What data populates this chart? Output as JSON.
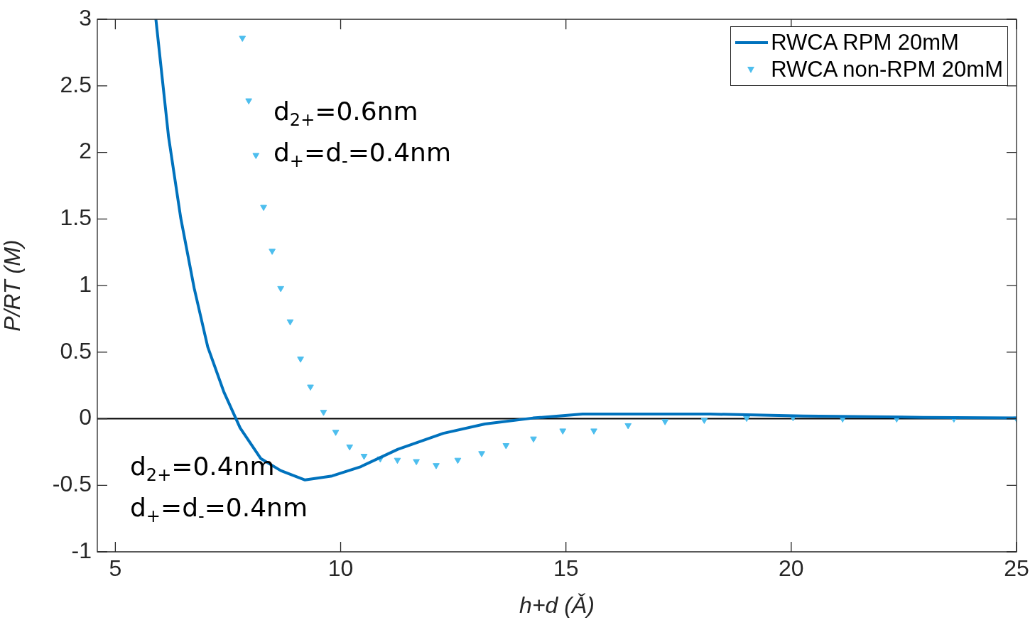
{
  "chart_data": {
    "type": "line",
    "xlabel": "h+d (Ǎ)",
    "ylabel": "P/RT (M)",
    "xlim": [
      4.6,
      25
    ],
    "xticks": [
      5,
      10,
      15,
      20,
      25
    ],
    "ylim": [
      -1,
      3
    ],
    "yticks": [
      -1,
      -0.5,
      0,
      0.5,
      1,
      1.5,
      2,
      2.5,
      3
    ],
    "grid": false,
    "legend": "top right",
    "series": [
      {
        "name": "RWCA RPM 20mM",
        "color": "#0072bd",
        "line_style": "solid",
        "marker": "none",
        "x": [
          5.9,
          6.18,
          6.45,
          6.75,
          7.05,
          7.41,
          7.77,
          8.23,
          8.67,
          9.21,
          9.81,
          10.45,
          11.27,
          12.28,
          13.2,
          14.27,
          15.37,
          18.2,
          20.26,
          22.93,
          25
        ],
        "values": [
          3,
          2.12,
          1.51,
          0.98,
          0.54,
          0.2,
          -0.07,
          -0.3,
          -0.39,
          -0.46,
          -0.43,
          -0.36,
          -0.23,
          -0.11,
          -0.04,
          0.005,
          0.035,
          0.035,
          0.02,
          0.01,
          0.005
        ]
      },
      {
        "name": "RWCA non-RPM 20mM",
        "type": "scatter",
        "color": "#4dbeee",
        "marker": "triangle",
        "x": [
          7.82,
          7.96,
          8.12,
          8.29,
          8.48,
          8.67,
          8.88,
          9.11,
          9.33,
          9.62,
          9.89,
          10.2,
          10.52,
          10.88,
          11.26,
          11.68,
          12.12,
          12.6,
          13.13,
          13.67,
          14.28,
          14.93,
          15.62,
          16.38,
          17.2,
          18.07,
          19.01,
          20.04,
          21.14,
          22.34,
          23.61,
          25
        ],
        "values": [
          2.86,
          2.39,
          1.98,
          1.59,
          1.26,
          0.98,
          0.73,
          0.45,
          0.24,
          0.05,
          -0.1,
          -0.21,
          -0.28,
          -0.3,
          -0.31,
          -0.32,
          -0.35,
          -0.31,
          -0.26,
          -0.2,
          -0.15,
          -0.09,
          -0.09,
          -0.05,
          -0.02,
          -0.01,
          0.005,
          0.01,
          0,
          0,
          0,
          0
        ]
      }
    ],
    "ref_lines": [
      {
        "axis": "y",
        "value": 0,
        "color": "#000000",
        "line_style": "solid"
      }
    ],
    "annotations": [
      "d$_{2+}$=0.6nm",
      "d$_{+}$=d$_{-}$=0.4nm",
      "d$_{2+}$=0.4nm",
      "d$_{+}$=d$_{-}$=0.4nm"
    ]
  }
}
